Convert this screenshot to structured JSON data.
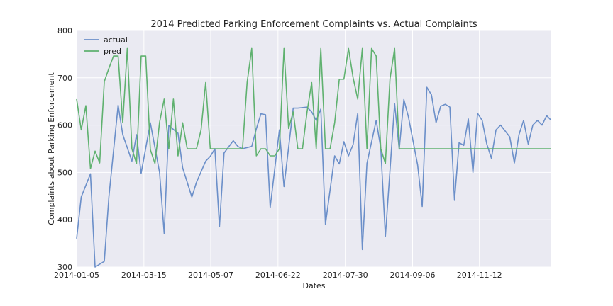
{
  "chart_data": {
    "type": "line",
    "title": "2014 Predicted Parking Enforcement Complaints vs. Actual Complaints",
    "xlabel": "Dates",
    "ylabel": "Complaints about Parking Enforcement",
    "ylim": [
      300,
      800
    ],
    "yticks": [
      300,
      400,
      500,
      600,
      700,
      800
    ],
    "xlim": [
      0,
      103
    ],
    "xticks": [
      {
        "pos": 0,
        "label": "2014-01-05"
      },
      {
        "pos": 14.6,
        "label": "2014-03-15"
      },
      {
        "pos": 29.1,
        "label": "2014-05-07"
      },
      {
        "pos": 43.7,
        "label": "2014-06-22"
      },
      {
        "pos": 58.3,
        "label": "2014-07-30"
      },
      {
        "pos": 72.9,
        "label": "2014-09-06"
      },
      {
        "pos": 87.4,
        "label": "2014-11-12"
      }
    ],
    "grid": true,
    "legend": "top-left",
    "colors": {
      "background": "#eaeaf2",
      "actual": "#6b8fc9",
      "pred": "#5fb16f"
    },
    "series": [
      {
        "name": "actual",
        "x": [
          0,
          1,
          3,
          4,
          6,
          7,
          9,
          10,
          12,
          13,
          14,
          16,
          18,
          19,
          20,
          22,
          23,
          25,
          26,
          28,
          29,
          30,
          31,
          32,
          34,
          35,
          36,
          38,
          39,
          40,
          41,
          42,
          44,
          45,
          47,
          48,
          50,
          51,
          52,
          53,
          54,
          56,
          57,
          58,
          59,
          60,
          61,
          62,
          63,
          65,
          66,
          67,
          69,
          70,
          71,
          72,
          74,
          75,
          76,
          77,
          78,
          79,
          80,
          81,
          82,
          83,
          84,
          85,
          86,
          87,
          88,
          89,
          90,
          91,
          92,
          94,
          95,
          96,
          97,
          98,
          99,
          100,
          101,
          102,
          103
        ],
        "values": [
          360,
          448,
          497,
          300,
          312,
          449,
          642,
          580,
          524,
          580,
          498,
          605,
          500,
          371,
          599,
          583,
          510,
          448,
          479,
          524,
          534,
          550,
          385,
          541,
          567,
          555,
          550,
          555,
          592,
          624,
          622,
          426,
          590,
          470,
          636,
          636,
          638,
          628,
          610,
          634,
          390,
          535,
          518,
          565,
          535,
          559,
          625,
          337,
          519,
          610,
          551,
          365,
          645,
          549,
          654,
          617,
          516,
          428,
          680,
          664,
          605,
          640,
          644,
          638,
          441,
          563,
          557,
          613,
          500,
          625,
          610,
          560,
          530,
          590,
          600,
          575,
          520,
          580,
          610,
          560,
          600,
          610,
          600,
          620,
          610
        ],
        "clip_to": 103
      },
      {
        "name": "pred",
        "x": [
          0,
          1,
          2,
          3,
          4,
          5,
          6,
          7,
          8,
          9,
          10,
          11,
          12,
          13,
          14,
          15,
          16,
          17,
          18,
          19,
          20,
          21,
          22,
          23,
          24,
          25,
          26,
          27,
          28,
          29,
          30,
          31,
          32,
          33,
          34,
          35,
          36,
          37,
          38,
          39,
          40,
          41,
          42,
          43,
          44,
          45,
          46,
          47,
          48,
          49,
          50,
          51,
          52,
          53,
          54,
          55,
          56,
          57,
          58,
          59,
          60,
          61,
          62,
          63,
          64,
          65,
          66,
          67,
          68,
          69,
          70,
          71,
          72,
          73,
          74,
          75,
          76,
          77,
          78,
          79,
          80,
          81,
          82,
          83,
          84,
          85,
          86,
          87,
          88,
          89,
          90,
          91,
          92,
          93,
          94,
          95,
          96,
          97,
          98,
          99,
          100,
          101,
          102,
          103
        ],
        "values": [
          655,
          590,
          641,
          508,
          545,
          520,
          692,
          720,
          746,
          746,
          605,
          762,
          550,
          519,
          746,
          746,
          548,
          519,
          606,
          655,
          550,
          655,
          535,
          605,
          550,
          550,
          550,
          590,
          690,
          550,
          550,
          550,
          550,
          550,
          550,
          550,
          550,
          690,
          762,
          535,
          550,
          550,
          535,
          535,
          550,
          762,
          593,
          628,
          550,
          550,
          628,
          690,
          550,
          762,
          550,
          550,
          605,
          697,
          697,
          762,
          700,
          655,
          762,
          550,
          762,
          746,
          550,
          519,
          698,
          762,
          550,
          550,
          550,
          550,
          550,
          550,
          550,
          550,
          550,
          550,
          550,
          550,
          550,
          550,
          550,
          550,
          550,
          550,
          550,
          550,
          550,
          550,
          550,
          550,
          550,
          550,
          550,
          550,
          550,
          550,
          550,
          550,
          550,
          550
        ]
      }
    ]
  }
}
